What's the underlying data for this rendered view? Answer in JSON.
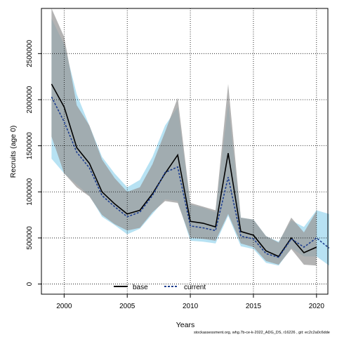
{
  "chart_data": {
    "type": "line",
    "title": "",
    "xlabel": "Years",
    "ylabel": "Recruits (age 0)",
    "xlim": [
      1998.2,
      2020.9
    ],
    "ylim": [
      -110000,
      2990000
    ],
    "grid": true,
    "legend_position": "bottom-center",
    "x_ticks": [
      2000,
      2005,
      2010,
      2015,
      2020
    ],
    "y_ticks": [
      0,
      500000,
      1000000,
      1500000,
      2000000,
      2500000
    ],
    "x": [
      1999,
      2000,
      2001,
      2002,
      2003,
      2004,
      2005,
      2006,
      2007,
      2008,
      2009,
      2010,
      2011,
      2012,
      2013,
      2014,
      2015,
      2016,
      2017,
      2018,
      2019,
      2020,
      2021
    ],
    "series": [
      {
        "name": "base",
        "color": "#000000",
        "band_color": "#999999",
        "values": [
          2170000,
          1920000,
          1480000,
          1310000,
          1000000,
          870000,
          760000,
          800000,
          980000,
          1200000,
          1400000,
          680000,
          660000,
          620000,
          1420000,
          570000,
          530000,
          360000,
          300000,
          500000,
          340000,
          400000,
          null
        ],
        "lower": [
          1600000,
          1200000,
          1050000,
          950000,
          750000,
          650000,
          580000,
          610000,
          780000,
          900000,
          880000,
          500000,
          490000,
          470000,
          760000,
          440000,
          400000,
          250000,
          210000,
          380000,
          210000,
          200000,
          null
        ],
        "upper": [
          3000000,
          2680000,
          1940000,
          1720000,
          1350000,
          1150000,
          1000000,
          1050000,
          1300000,
          1650000,
          2020000,
          880000,
          840000,
          800000,
          2170000,
          720000,
          700000,
          520000,
          450000,
          720000,
          560000,
          790000,
          null
        ]
      },
      {
        "name": "current",
        "color": "#1f3f8f",
        "band_color": "#87ceeb",
        "values": [
          2030000,
          1760000,
          1430000,
          1260000,
          960000,
          840000,
          730000,
          780000,
          960000,
          1210000,
          1270000,
          630000,
          610000,
          580000,
          1160000,
          520000,
          490000,
          330000,
          290000,
          490000,
          400000,
          500000,
          390000
        ],
        "lower": [
          1360000,
          1200000,
          1080000,
          960000,
          730000,
          640000,
          540000,
          600000,
          760000,
          920000,
          900000,
          470000,
          460000,
          440000,
          740000,
          410000,
          380000,
          230000,
          200000,
          390000,
          300000,
          300000,
          200000
        ],
        "upper": [
          2880000,
          2600000,
          2060000,
          1720000,
          1380000,
          1200000,
          1050000,
          1130000,
          1380000,
          1720000,
          1920000,
          860000,
          830000,
          780000,
          1960000,
          720000,
          700000,
          520000,
          460000,
          690000,
          620000,
          800000,
          760000
        ]
      }
    ]
  },
  "footer": "stockassessment.org, whg.7b-ce-k-2022_ADG_DS, r16226 , git: ec2c2a0c6dde"
}
